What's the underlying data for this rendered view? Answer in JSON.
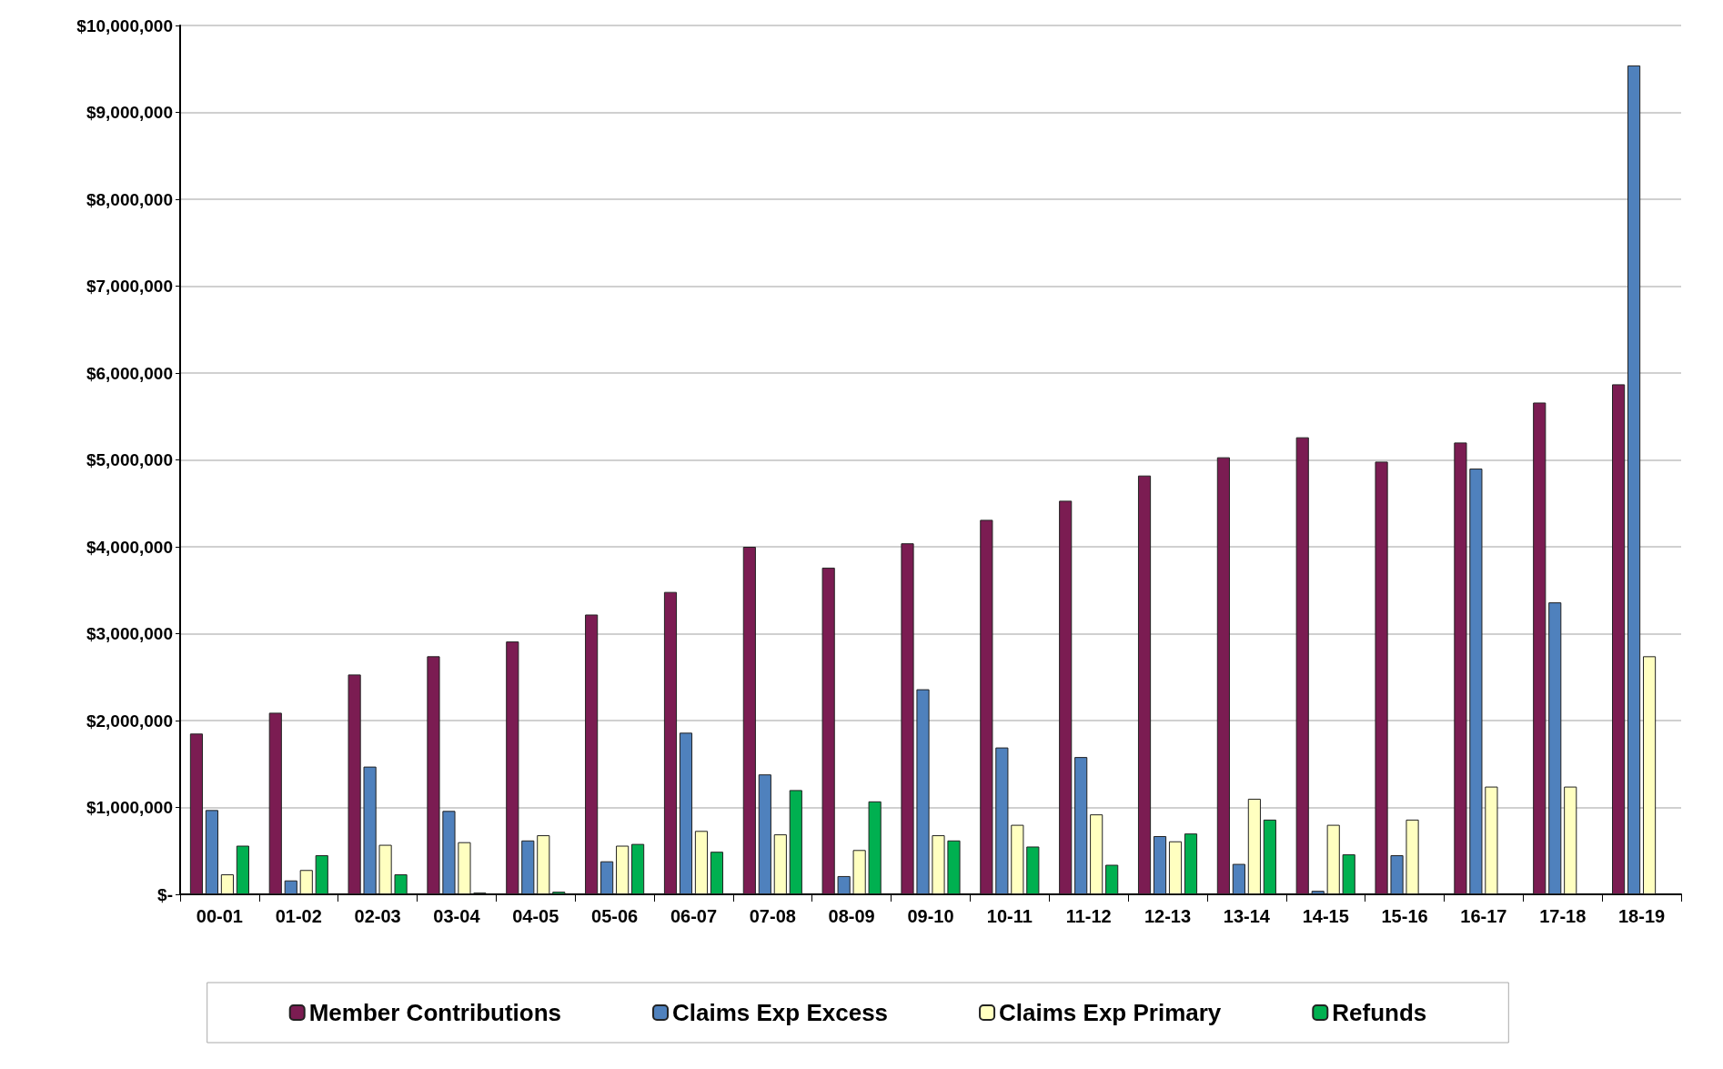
{
  "chart_data": {
    "type": "bar",
    "categories": [
      "00-01",
      "01-02",
      "02-03",
      "03-04",
      "04-05",
      "05-06",
      "06-07",
      "07-08",
      "08-09",
      "09-10",
      "10-11",
      "11-12",
      "12-13",
      "13-14",
      "14-15",
      "15-16",
      "16-17",
      "17-18",
      "18-19"
    ],
    "series": [
      {
        "name": "Member Contributions",
        "color": "#7b1c52",
        "values": [
          1850000,
          2090000,
          2530000,
          2740000,
          2910000,
          3220000,
          3480000,
          4000000,
          3760000,
          4040000,
          4310000,
          4530000,
          4820000,
          5030000,
          5260000,
          4980000,
          5200000,
          5660000,
          5870000
        ]
      },
      {
        "name": "Claims Exp Excess",
        "color": "#4f81bd",
        "values": [
          970000,
          160000,
          1470000,
          960000,
          620000,
          380000,
          1860000,
          1380000,
          210000,
          2360000,
          1690000,
          1580000,
          670000,
          350000,
          40000,
          450000,
          4900000,
          3360000,
          9540000
        ]
      },
      {
        "name": "Claims Exp Primary",
        "color": "#ffffc0",
        "values": [
          230000,
          280000,
          570000,
          600000,
          680000,
          560000,
          730000,
          690000,
          510000,
          680000,
          800000,
          920000,
          610000,
          1100000,
          800000,
          860000,
          1240000,
          1240000,
          2740000
        ]
      },
      {
        "name": "Refunds",
        "color": "#00b050",
        "values": [
          560000,
          450000,
          230000,
          20000,
          30000,
          580000,
          490000,
          1200000,
          1070000,
          620000,
          550000,
          340000,
          700000,
          860000,
          460000,
          0,
          0,
          0,
          0
        ]
      }
    ],
    "ylim": [
      0,
      10000000
    ],
    "yticks": [
      {
        "value": 0,
        "label": "$-"
      },
      {
        "value": 1000000,
        "label": "$1,000,000"
      },
      {
        "value": 2000000,
        "label": "$2,000,000"
      },
      {
        "value": 3000000,
        "label": "$3,000,000"
      },
      {
        "value": 4000000,
        "label": "$4,000,000"
      },
      {
        "value": 5000000,
        "label": "$5,000,000"
      },
      {
        "value": 6000000,
        "label": "$6,000,000"
      },
      {
        "value": 7000000,
        "label": "$7,000,000"
      },
      {
        "value": 8000000,
        "label": "$8,000,000"
      },
      {
        "value": 9000000,
        "label": "$9,000,000"
      },
      {
        "value": 10000000,
        "label": "$10,000,000"
      }
    ],
    "grid": "y",
    "legend": "bottom"
  }
}
